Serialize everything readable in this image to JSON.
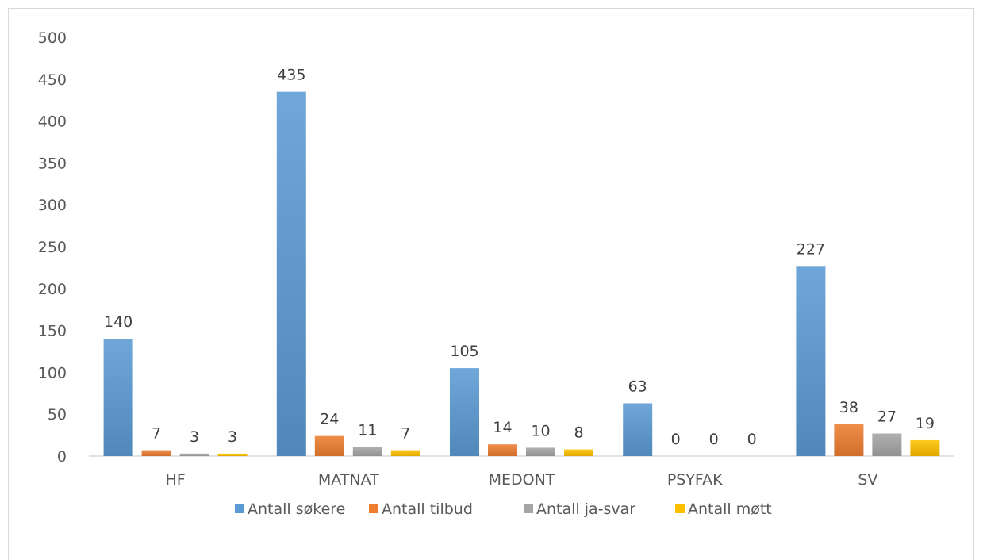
{
  "chart_data": {
    "type": "bar",
    "categories": [
      "HF",
      "MATNAT",
      "MEDONT",
      "PSYFAK",
      "SV"
    ],
    "series": [
      {
        "name": "Antall søkere",
        "values": [
          140,
          435,
          105,
          63,
          227
        ],
        "color": "#5b9bd5"
      },
      {
        "name": "Antall tilbud",
        "values": [
          7,
          24,
          14,
          0,
          38
        ],
        "color": "#ed7d31"
      },
      {
        "name": "Antall ja-svar",
        "values": [
          3,
          11,
          10,
          0,
          27
        ],
        "color": "#a5a5a5"
      },
      {
        "name": "Antall møtt",
        "values": [
          3,
          7,
          8,
          0,
          19
        ],
        "color": "#ffc000"
      }
    ],
    "yticks": [
      0,
      50,
      100,
      150,
      200,
      250,
      300,
      350,
      400,
      450,
      500
    ],
    "ylim": [
      0,
      500
    ],
    "grid": false,
    "legend": "bottom",
    "title": "",
    "xlabel": "",
    "ylabel": ""
  }
}
